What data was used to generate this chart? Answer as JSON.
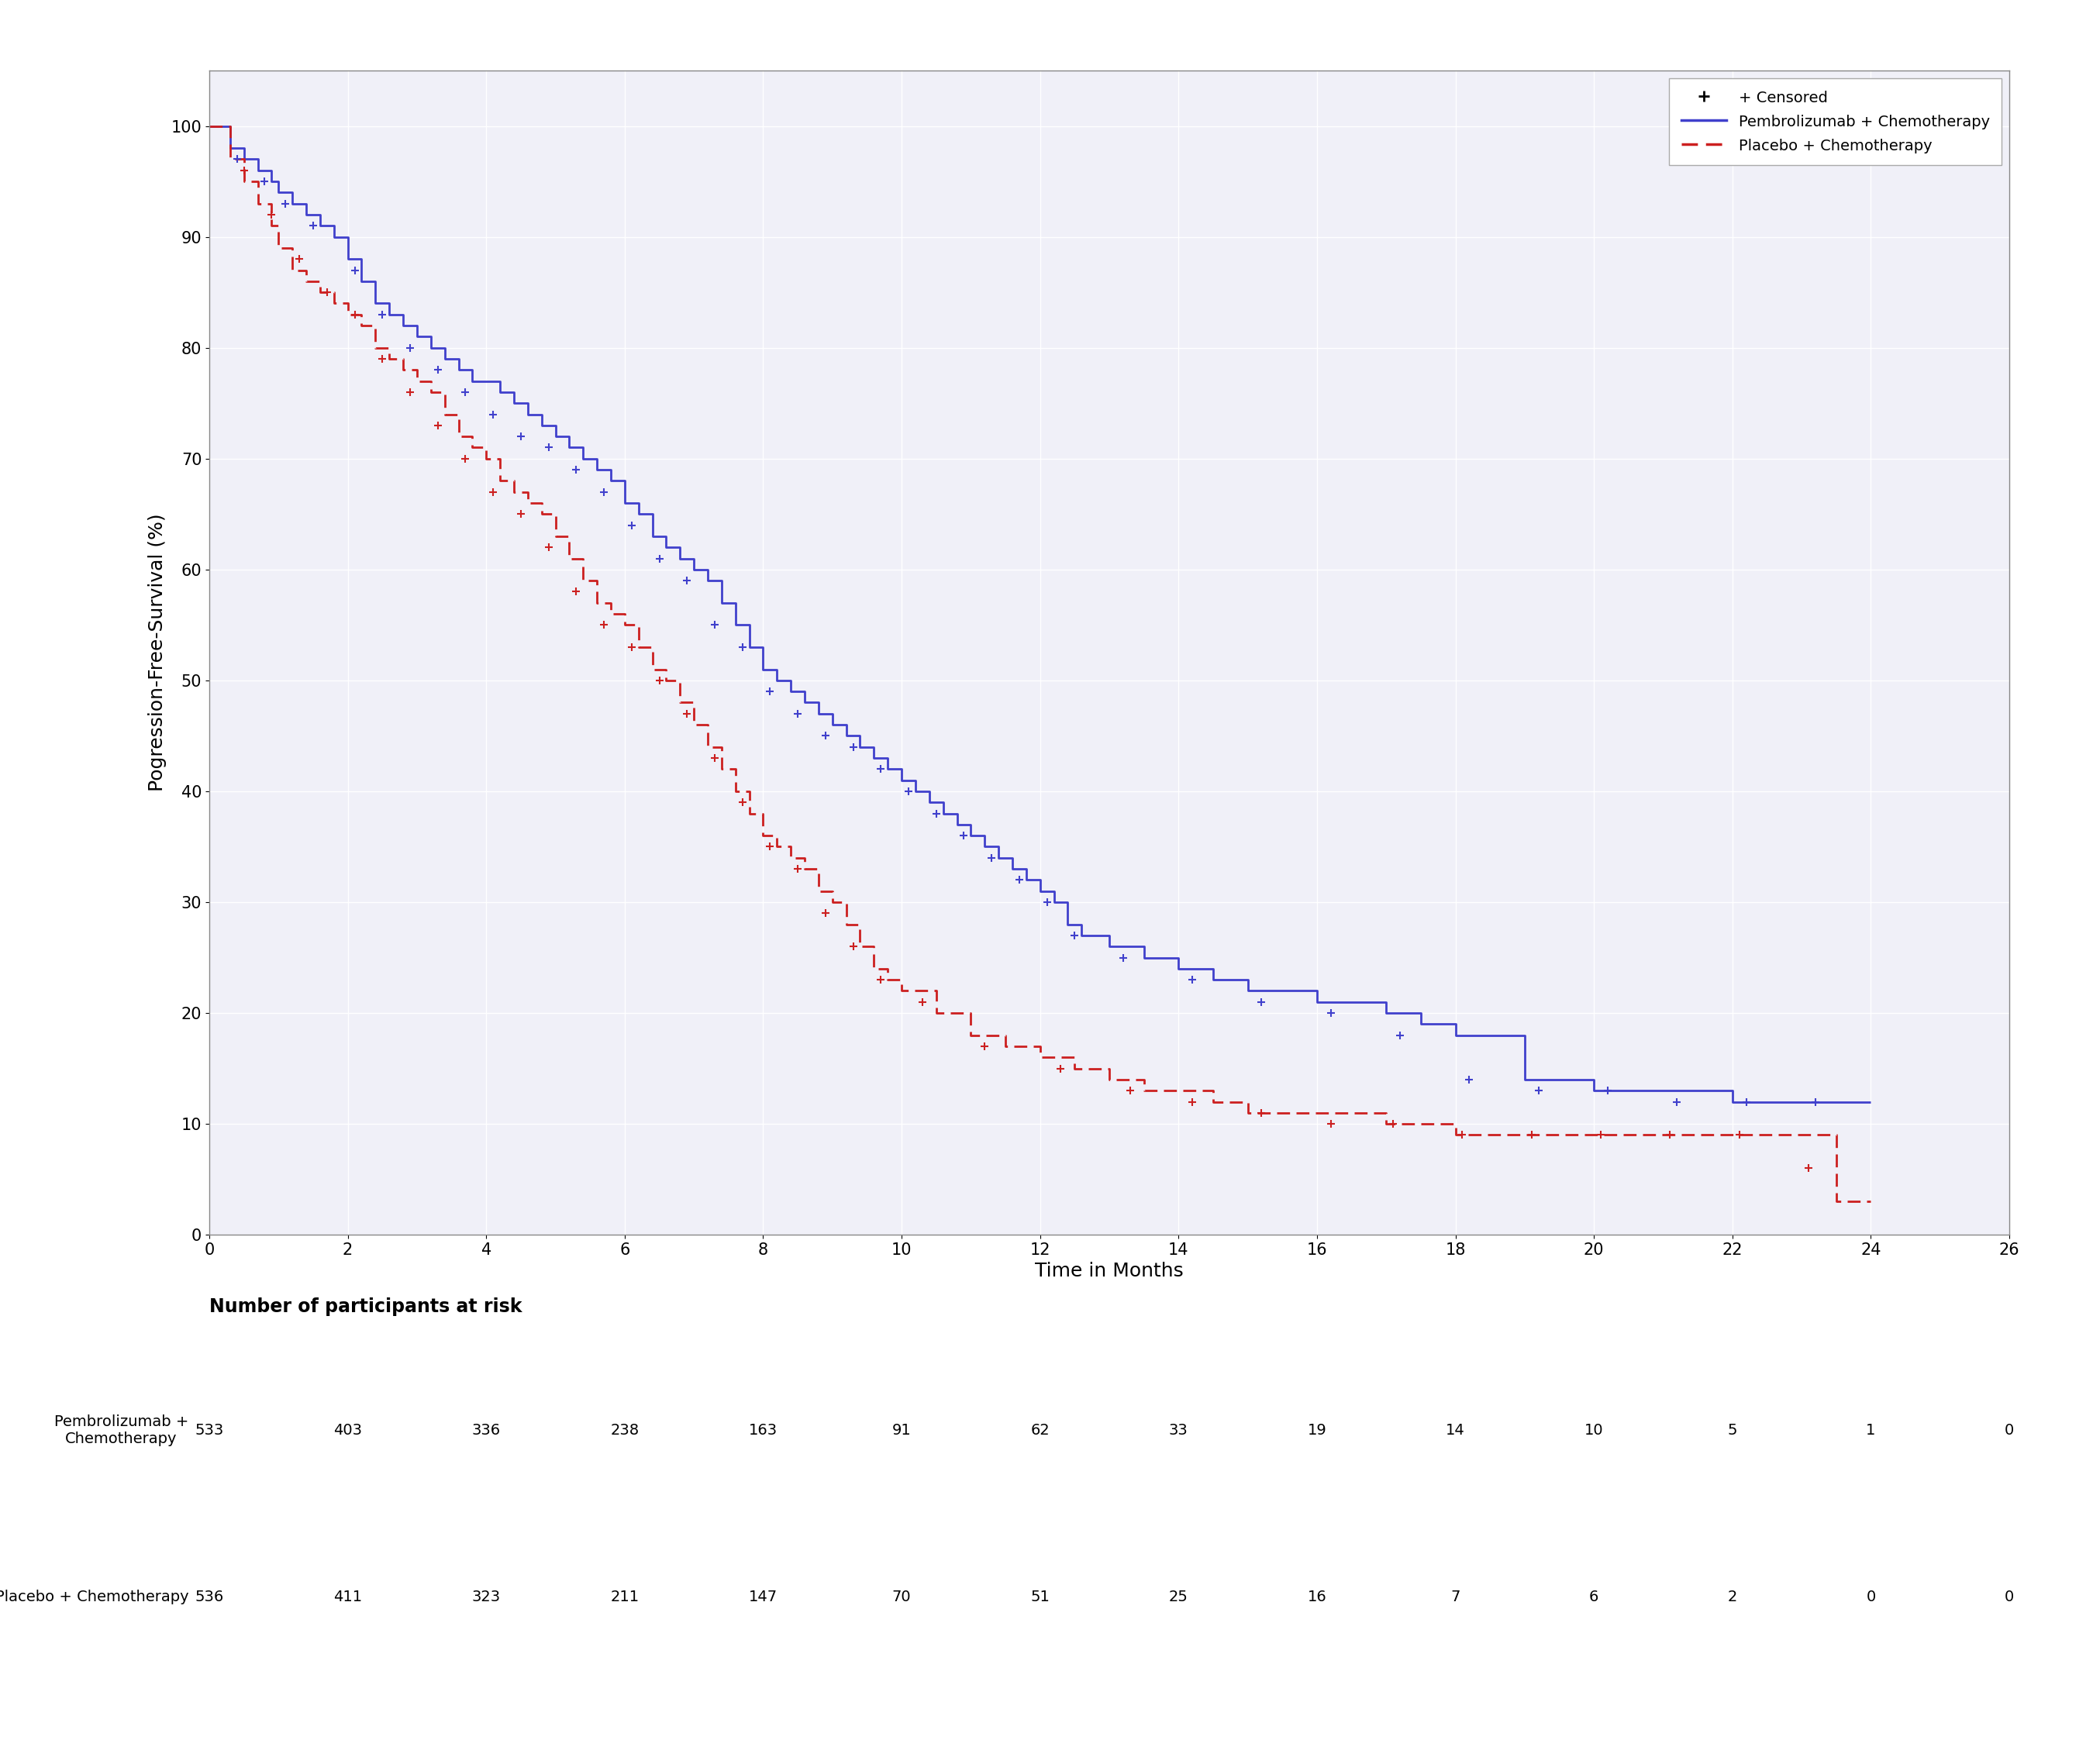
{
  "title": "",
  "ylabel": "Pogression-Free-Survival (%)",
  "xlabel": "Time in Months",
  "xlim": [
    0,
    26
  ],
  "ylim": [
    0,
    105
  ],
  "yticks": [
    0,
    10,
    20,
    30,
    40,
    50,
    60,
    70,
    80,
    90,
    100
  ],
  "xticks": [
    0,
    2,
    4,
    6,
    8,
    10,
    12,
    14,
    16,
    18,
    20,
    22,
    24,
    26
  ],
  "blue_color": "#4040cc",
  "red_color": "#cc2020",
  "background_color": "#f0f0f8",
  "risk_table_header": "Number of participants at risk",
  "risk_label_1": "Pembrolizumab +\nChemotherapy",
  "risk_label_2": "Placebo + Chemotherapy",
  "risk_times": [
    0,
    2,
    4,
    6,
    8,
    10,
    12,
    14,
    16,
    18,
    20,
    22,
    24,
    26
  ],
  "risk_numbers_1": [
    533,
    403,
    336,
    238,
    163,
    91,
    62,
    33,
    19,
    14,
    10,
    5,
    1,
    0
  ],
  "risk_numbers_2": [
    536,
    411,
    323,
    211,
    147,
    70,
    51,
    25,
    16,
    7,
    6,
    2,
    0,
    0
  ],
  "pembrolizumab_steps": {
    "t": [
      0,
      0.3,
      0.5,
      0.7,
      0.9,
      1.0,
      1.2,
      1.4,
      1.6,
      1.8,
      2.0,
      2.2,
      2.4,
      2.6,
      2.8,
      3.0,
      3.2,
      3.4,
      3.6,
      3.8,
      4.0,
      4.2,
      4.4,
      4.6,
      4.8,
      5.0,
      5.2,
      5.4,
      5.6,
      5.8,
      6.0,
      6.2,
      6.4,
      6.6,
      6.8,
      7.0,
      7.2,
      7.4,
      7.6,
      7.8,
      8.0,
      8.2,
      8.4,
      8.6,
      8.8,
      9.0,
      9.2,
      9.4,
      9.6,
      9.8,
      10.0,
      10.2,
      10.4,
      10.6,
      10.8,
      11.0,
      11.2,
      11.4,
      11.6,
      11.8,
      12.0,
      12.2,
      12.4,
      12.6,
      13.0,
      13.5,
      14.0,
      14.5,
      15.0,
      16.0,
      17.0,
      17.5,
      18.0,
      19.0,
      20.0,
      21.0,
      22.0,
      23.0,
      23.5,
      24.0
    ],
    "s": [
      100,
      98,
      97,
      96,
      95,
      94,
      93,
      92,
      91,
      90,
      88,
      86,
      84,
      83,
      82,
      81,
      80,
      79,
      78,
      77,
      77,
      76,
      75,
      74,
      73,
      72,
      71,
      70,
      69,
      68,
      66,
      65,
      63,
      62,
      61,
      60,
      59,
      57,
      55,
      53,
      51,
      50,
      49,
      48,
      47,
      46,
      45,
      44,
      43,
      42,
      41,
      40,
      39,
      38,
      37,
      36,
      35,
      34,
      33,
      32,
      31,
      30,
      28,
      27,
      26,
      25,
      24,
      23,
      22,
      21,
      20,
      19,
      18,
      14,
      13,
      13,
      12,
      12,
      12,
      12
    ]
  },
  "placebo_steps": {
    "t": [
      0,
      0.3,
      0.5,
      0.7,
      0.9,
      1.0,
      1.2,
      1.4,
      1.6,
      1.8,
      2.0,
      2.2,
      2.4,
      2.6,
      2.8,
      3.0,
      3.2,
      3.4,
      3.6,
      3.8,
      4.0,
      4.2,
      4.4,
      4.6,
      4.8,
      5.0,
      5.2,
      5.4,
      5.6,
      5.8,
      6.0,
      6.2,
      6.4,
      6.6,
      6.8,
      7.0,
      7.2,
      7.4,
      7.6,
      7.8,
      8.0,
      8.2,
      8.4,
      8.6,
      8.8,
      9.0,
      9.2,
      9.4,
      9.6,
      9.8,
      10.0,
      10.5,
      11.0,
      11.5,
      12.0,
      12.5,
      13.0,
      13.5,
      14.0,
      14.5,
      15.0,
      16.0,
      17.0,
      18.0,
      19.0,
      20.0,
      21.0,
      22.0,
      23.0,
      23.5,
      24.0
    ],
    "s": [
      100,
      97,
      95,
      93,
      91,
      89,
      87,
      86,
      85,
      84,
      83,
      82,
      80,
      79,
      78,
      77,
      76,
      74,
      72,
      71,
      70,
      68,
      67,
      66,
      65,
      63,
      61,
      59,
      57,
      56,
      55,
      53,
      51,
      50,
      48,
      46,
      44,
      42,
      40,
      38,
      36,
      35,
      34,
      33,
      31,
      30,
      28,
      26,
      24,
      23,
      22,
      20,
      18,
      17,
      16,
      15,
      14,
      13,
      13,
      12,
      11,
      11,
      10,
      9,
      9,
      9,
      9,
      9,
      9,
      3,
      3
    ]
  },
  "pembrolizumab_censors": {
    "t": [
      0.4,
      0.8,
      1.1,
      1.5,
      2.1,
      2.5,
      2.9,
      3.3,
      3.7,
      4.1,
      4.5,
      4.9,
      5.3,
      5.7,
      6.1,
      6.5,
      6.9,
      7.3,
      7.7,
      8.1,
      8.5,
      8.9,
      9.3,
      9.7,
      10.1,
      10.5,
      10.9,
      11.3,
      11.7,
      12.1,
      12.5,
      13.2,
      14.2,
      15.2,
      16.2,
      17.2,
      18.2,
      19.2,
      20.2,
      21.2,
      22.2,
      23.2
    ],
    "s": [
      97,
      95,
      93,
      91,
      87,
      83,
      80,
      78,
      76,
      74,
      72,
      71,
      69,
      67,
      64,
      61,
      59,
      55,
      53,
      49,
      47,
      45,
      44,
      42,
      40,
      38,
      36,
      34,
      32,
      30,
      27,
      25,
      23,
      21,
      20,
      18,
      14,
      13,
      13,
      12,
      12,
      12
    ]
  },
  "placebo_censors": {
    "t": [
      0.5,
      0.9,
      1.3,
      1.7,
      2.1,
      2.5,
      2.9,
      3.3,
      3.7,
      4.1,
      4.5,
      4.9,
      5.3,
      5.7,
      6.1,
      6.5,
      6.9,
      7.3,
      7.7,
      8.1,
      8.5,
      8.9,
      9.3,
      9.7,
      10.3,
      11.2,
      12.3,
      13.3,
      14.2,
      15.2,
      16.2,
      17.1,
      18.1,
      19.1,
      20.1,
      21.1,
      22.1,
      23.1
    ],
    "s": [
      96,
      92,
      88,
      85,
      83,
      79,
      76,
      73,
      70,
      67,
      65,
      62,
      58,
      55,
      53,
      50,
      47,
      43,
      39,
      35,
      33,
      29,
      26,
      23,
      21,
      17,
      15,
      13,
      12,
      11,
      10,
      10,
      9,
      9,
      9,
      9,
      9,
      6
    ]
  }
}
